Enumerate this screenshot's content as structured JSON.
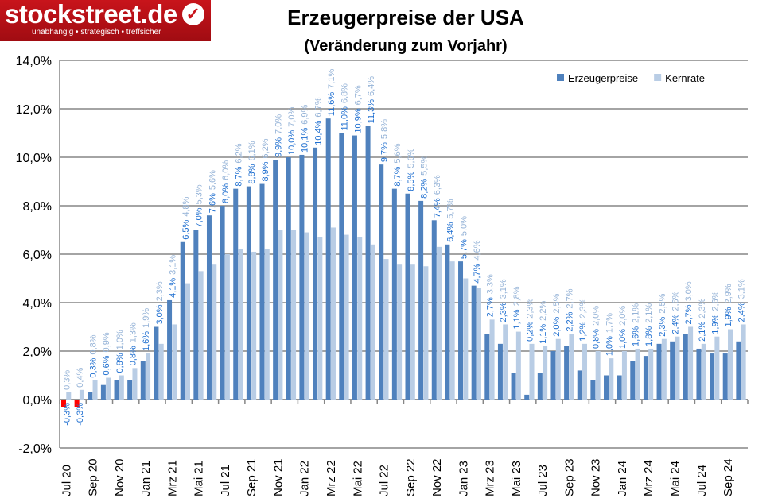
{
  "logo": {
    "text": "stockstreet.de",
    "tagline": "unabhängig • strategisch • treffsicher"
  },
  "chart_data": {
    "type": "bar",
    "title": "Erzeugerpreise der USA",
    "subtitle": "(Veränderung zum Vorjahr)",
    "xlabel": "",
    "ylabel": "",
    "ylim": [
      -2,
      14
    ],
    "yticks": [
      "-2,0%",
      "0,0%",
      "2,0%",
      "4,0%",
      "6,0%",
      "8,0%",
      "10,0%",
      "12,0%",
      "14,0%"
    ],
    "grid": true,
    "legend_position": "top-center",
    "categories": [
      "Jul 20",
      "Aug 20",
      "Sep 20",
      "Okt 20",
      "Nov 20",
      "Dez 20",
      "Jan 21",
      "Feb 21",
      "Mrz 21",
      "Apr 21",
      "Mai 21",
      "Jun 21",
      "Jul 21",
      "Aug 21",
      "Sep 21",
      "Okt 21",
      "Nov 21",
      "Dez 21",
      "Jan 22",
      "Feb 22",
      "Mrz 22",
      "Apr 22",
      "Mai 22",
      "Jun 22",
      "Jul 22",
      "Aug 22",
      "Sep 22",
      "Okt 22",
      "Nov 22",
      "Dez 22",
      "Jan 23",
      "Feb 23",
      "Mrz 23",
      "Apr 23",
      "Mai 23",
      "Jun 23",
      "Jul 23",
      "Aug 23",
      "Sep 23",
      "Okt 23",
      "Nov 23",
      "Dez 23",
      "Jan 24",
      "Feb 24",
      "Mrz 24",
      "Apr 24",
      "Mai 24",
      "Jun 24",
      "Jul 24",
      "Aug 24",
      "Sep 24",
      "Okt 24"
    ],
    "tick_labels": [
      "Jul 20",
      "Sep 20",
      "Nov 20",
      "Jan 21",
      "Mrz 21",
      "Mai 21",
      "Jul 21",
      "Sep 21",
      "Nov 21",
      "Jan 22",
      "Mrz 22",
      "Mai 22",
      "Jul 22",
      "Sep 22",
      "Nov 22",
      "Jan 23",
      "Mrz 23",
      "Mai 23",
      "Jul 23",
      "Sep 23",
      "Nov 23",
      "Jan 24",
      "Mrz 24",
      "Mai 24",
      "Jul 24",
      "Sep 24"
    ],
    "series": [
      {
        "name": "Erzeugerpreise",
        "color": "#4f81bd",
        "negative_color": "#ff0000",
        "label_color": "#1f6fd0",
        "values": [
          -0.3,
          -0.3,
          0.3,
          0.6,
          0.8,
          0.8,
          1.6,
          3.0,
          4.1,
          6.5,
          7.0,
          7.6,
          8.0,
          8.7,
          8.8,
          8.9,
          9.9,
          10.0,
          10.1,
          10.4,
          11.6,
          11.0,
          10.9,
          11.3,
          9.7,
          8.7,
          8.5,
          8.2,
          7.4,
          6.4,
          5.7,
          4.7,
          2.7,
          2.3,
          1.1,
          0.2,
          1.1,
          2.0,
          2.2,
          1.2,
          0.8,
          1.0,
          1.0,
          1.6,
          1.8,
          2.3,
          2.4,
          2.7,
          2.1,
          1.9,
          1.9,
          2.4
        ]
      },
      {
        "name": "Kernrate",
        "color": "#b9cde5",
        "label_color": "#95b3d7",
        "values": [
          0.3,
          0.4,
          0.8,
          0.9,
          1.0,
          1.3,
          1.9,
          2.3,
          3.1,
          4.8,
          5.3,
          5.6,
          6.0,
          6.2,
          6.1,
          6.2,
          7.0,
          7.0,
          6.9,
          6.7,
          7.1,
          6.8,
          6.7,
          6.4,
          5.8,
          5.6,
          5.6,
          5.5,
          6.3,
          5.7,
          5.0,
          4.6,
          3.3,
          3.1,
          2.8,
          2.3,
          2.2,
          2.5,
          2.7,
          2.3,
          2.0,
          1.7,
          2.0,
          2.1,
          2.1,
          2.5,
          2.6,
          3.0,
          2.3,
          2.6,
          2.9,
          3.1
        ]
      }
    ]
  }
}
